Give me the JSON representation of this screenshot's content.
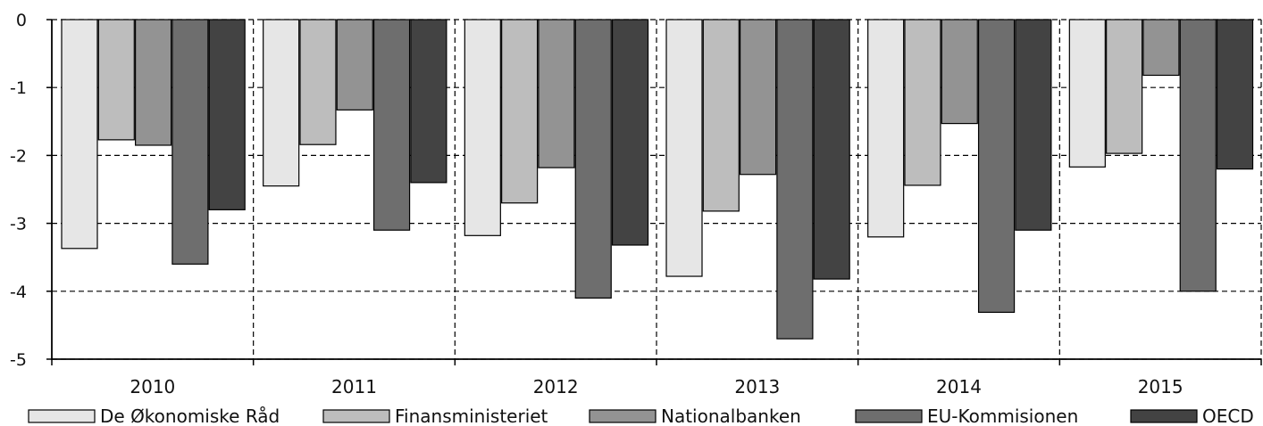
{
  "chart_data": {
    "type": "bar",
    "title": "",
    "xlabel": "",
    "ylabel": "",
    "ylim": [
      -5,
      0
    ],
    "yticks": [
      0,
      -1,
      -2,
      -3,
      -4,
      -5
    ],
    "ytick_labels": [
      "0",
      "-1",
      "-2",
      "-3",
      "-4",
      "-5"
    ],
    "grid": "dashed",
    "legend_position": "bottom",
    "categories": [
      "2010",
      "2011",
      "2012",
      "2013",
      "2014",
      "2015"
    ],
    "series": [
      {
        "name": "De Økonomiske Råd",
        "color": "#e6e6e6",
        "values": [
          -3.37,
          -2.45,
          -3.18,
          -3.78,
          -3.2,
          -2.17
        ]
      },
      {
        "name": "Finansministeriet",
        "color": "#bdbdbd",
        "values": [
          -1.77,
          -1.84,
          -2.7,
          -2.82,
          -2.44,
          -1.97
        ]
      },
      {
        "name": "Nationalbanken",
        "color": "#939393",
        "values": [
          -1.85,
          -1.33,
          -2.18,
          -2.28,
          -1.53,
          -0.82
        ]
      },
      {
        "name": "EU-Kommisionen",
        "color": "#6e6e6e",
        "values": [
          -3.6,
          -3.1,
          -4.1,
          -4.7,
          -4.31,
          -4.0
        ]
      },
      {
        "name": "OECD",
        "color": "#434343",
        "values": [
          -2.8,
          -2.4,
          -3.32,
          -3.82,
          -3.1,
          -2.2
        ]
      }
    ]
  }
}
